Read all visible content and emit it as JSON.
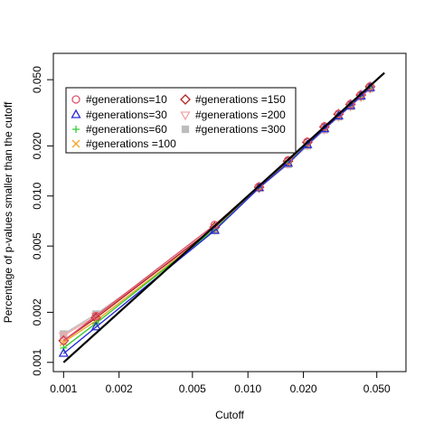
{
  "chart_data": {
    "type": "line",
    "title": "",
    "xlabel": "Cutoff",
    "ylabel": "Percentage of p-values smaller than the cutoff",
    "x_scale": "log",
    "y_scale": "log",
    "xlim": [
      0.00088,
      0.072
    ],
    "ylim": [
      0.00088,
      0.072
    ],
    "x_ticks": [
      0.001,
      0.002,
      0.005,
      0.01,
      0.02,
      0.05
    ],
    "x_tick_labels": [
      "0.001",
      "0.002",
      "0.005",
      "0.010",
      "0.020",
      "0.050"
    ],
    "y_ticks": [
      0.001,
      0.002,
      0.005,
      0.01,
      0.02,
      0.05
    ],
    "y_tick_labels": [
      "0.001",
      "0.002",
      "0.005",
      "0.010",
      "0.020",
      "0.050"
    ],
    "grid": false,
    "legend_position": "top-left",
    "reference_line": {
      "x": [
        0.001,
        0.055
      ],
      "y": [
        0.001,
        0.055
      ],
      "color": "#000000"
    },
    "series": [
      {
        "name": "#generations=10",
        "color": "#df536b",
        "marker": "circle",
        "x": [
          0.001,
          0.0015,
          0.0066,
          0.0115,
          0.0165,
          0.021,
          0.026,
          0.031,
          0.036,
          0.041,
          0.046
        ],
        "y": [
          0.00135,
          0.0019,
          0.0067,
          0.0114,
          0.0164,
          0.0212,
          0.0262,
          0.0312,
          0.0357,
          0.0406,
          0.0456
        ]
      },
      {
        "name": "#generations=30",
        "color": "#2b2bd8",
        "marker": "triangle",
        "x": [
          0.001,
          0.0015,
          0.0066,
          0.0115,
          0.0165,
          0.021,
          0.026,
          0.031,
          0.036,
          0.041,
          0.046
        ],
        "y": [
          0.00113,
          0.00163,
          0.0062,
          0.0112,
          0.0157,
          0.0203,
          0.0253,
          0.0302,
          0.0348,
          0.0398,
          0.0447
        ]
      },
      {
        "name": "#generations=60",
        "color": "#33cc33",
        "marker": "plus",
        "x": [
          0.001,
          0.0015,
          0.0066,
          0.0115,
          0.0165,
          0.021,
          0.026,
          0.031,
          0.036,
          0.041,
          0.046
        ],
        "y": [
          0.00122,
          0.00172,
          0.0063,
          0.0112,
          0.0158,
          0.0204,
          0.0254,
          0.0303,
          0.0349,
          0.0399,
          0.0448
        ]
      },
      {
        "name": "#generations =100",
        "color": "#f5a623",
        "marker": "cross",
        "x": [
          0.001,
          0.0015,
          0.0066,
          0.0115,
          0.0165,
          0.021,
          0.026,
          0.031,
          0.036,
          0.041,
          0.046
        ],
        "y": [
          0.00132,
          0.00178,
          0.0063,
          0.0112,
          0.0158,
          0.0205,
          0.0254,
          0.0303,
          0.0349,
          0.0399,
          0.0449
        ]
      },
      {
        "name": "#generations =150",
        "color": "#b22222",
        "marker": "diamond",
        "x": [
          0.001,
          0.0015,
          0.0066,
          0.0115,
          0.0165,
          0.021,
          0.026,
          0.031,
          0.036,
          0.041,
          0.046
        ],
        "y": [
          0.00135,
          0.00185,
          0.0065,
          0.0113,
          0.0162,
          0.021,
          0.026,
          0.031,
          0.0355,
          0.0404,
          0.0453
        ]
      },
      {
        "name": "#generations =200",
        "color": "#f4a6a6",
        "marker": "triangle-down",
        "x": [
          0.001,
          0.0015,
          0.0066,
          0.0115,
          0.0165,
          0.021,
          0.026,
          0.031,
          0.036,
          0.041,
          0.046
        ],
        "y": [
          0.00145,
          0.0019,
          0.0063,
          0.0112,
          0.0157,
          0.0203,
          0.0252,
          0.0301,
          0.0347,
          0.0396,
          0.0444
        ]
      },
      {
        "name": "#generations =300",
        "color": "#bdbdbd",
        "marker": "square",
        "x": [
          0.001,
          0.0015,
          0.0066,
          0.0115,
          0.0165,
          0.021,
          0.026,
          0.031,
          0.036,
          0.041,
          0.046
        ],
        "y": [
          0.00148,
          0.00195,
          0.0062,
          0.0112,
          0.0155,
          0.02,
          0.025,
          0.0299,
          0.0345,
          0.0393,
          0.0441
        ]
      }
    ]
  }
}
